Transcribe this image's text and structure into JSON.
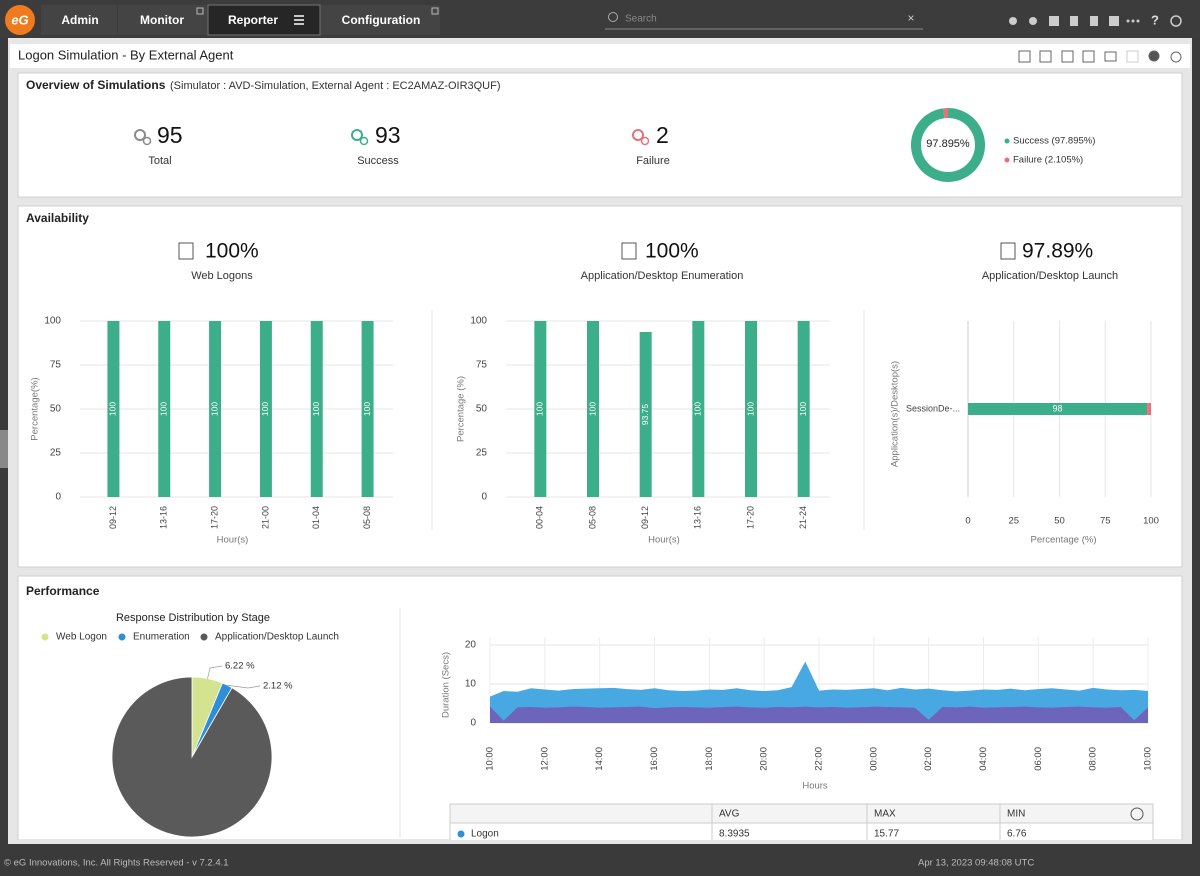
{
  "nav": {
    "tabs": [
      "Admin",
      "Monitor",
      "Reporter",
      "Configuration"
    ],
    "search_placeholder": "Search"
  },
  "page_title": "Logon Simulation - By External Agent",
  "overview": {
    "title": "Overview of Simulations",
    "subtitle": "(Simulator : AVD-Simulation, External Agent : EC2AMAZ-OIR3QUF)",
    "stats": [
      {
        "value": 95,
        "label": "Total",
        "color": "#8a8a8a"
      },
      {
        "value": 93,
        "label": "Success",
        "color": "#3dae8a"
      },
      {
        "value": 2,
        "label": "Failure",
        "color": "#e8707a"
      }
    ],
    "donut": {
      "type": "pie",
      "center_label": "97.895%",
      "categories": [
        "Success (97.895%)",
        "Failure (2.105%)"
      ],
      "values": [
        97.895,
        2.105
      ],
      "colors": [
        "#3dae8a",
        "#e8707a"
      ]
    }
  },
  "availability": {
    "title": "Availability",
    "kpis": [
      {
        "value": "100%",
        "label": "Web Logons"
      },
      {
        "value": "100%",
        "label": "Application/Desktop Enumeration"
      },
      {
        "value": "97.89%",
        "label": "Application/Desktop Launch"
      }
    ],
    "charts": [
      {
        "type": "bar",
        "categories": [
          "09-12",
          "13-16",
          "17-20",
          "21-00",
          "01-04",
          "05-08"
        ],
        "values": [
          100,
          100,
          100,
          100,
          100,
          100
        ],
        "color": "#3dae8a",
        "ylim": [
          0,
          100
        ],
        "yticks": [
          0,
          25,
          50,
          75,
          100
        ],
        "ylabel": "Percentage(%)",
        "xlabel": "Hour(s)",
        "grid": true
      },
      {
        "type": "bar",
        "categories": [
          "00-04",
          "05-08",
          "09-12",
          "13-16",
          "17-20",
          "21-24"
        ],
        "values": [
          100,
          100,
          93.75,
          100,
          100,
          100
        ],
        "color": "#3dae8a",
        "ylim": [
          0,
          100
        ],
        "yticks": [
          0,
          25,
          50,
          75,
          100
        ],
        "ylabel": "Percentage (%)",
        "xlabel": "Hour(s)",
        "grid": true
      },
      {
        "type": "hbar",
        "categories": [
          "SessionDe-..."
        ],
        "series": [
          {
            "color": "#3dae8a",
            "values": [
              97.89
            ],
            "value_labels": [
              "98"
            ]
          },
          {
            "color": "#e8707a",
            "values": [
              2.11
            ]
          }
        ],
        "xlim": [
          0,
          100
        ],
        "xticks": [
          0,
          25,
          50,
          75,
          100
        ],
        "xlabel": "Percentage (%)",
        "ylabel": "Application(s)/Desktop(s)",
        "grid": true
      }
    ]
  },
  "performance": {
    "title": "Performance",
    "pie": {
      "type": "pie",
      "title": "Response Distribution by Stage",
      "categories": [
        "Web Logon",
        "Enumeration",
        "Application/Desktop Launch"
      ],
      "values": [
        6.22,
        2.12,
        91.66
      ],
      "value_labels": [
        "6.22 %",
        "2.12 %",
        null
      ],
      "colors": [
        "#d4e38f",
        "#2e8fd8",
        "#5a5a5a"
      ]
    },
    "area": {
      "type": "area",
      "categories": [
        "10:00",
        null,
        null,
        null,
        "12:00",
        null,
        null,
        null,
        "14:00",
        null,
        null,
        null,
        "16:00",
        null,
        null,
        null,
        "18:00",
        null,
        null,
        null,
        "20:00",
        null,
        null,
        null,
        "22:00",
        null,
        null,
        null,
        "00:00",
        null,
        null,
        null,
        "02:00",
        null,
        null,
        null,
        "04:00",
        null,
        null,
        null,
        "06:00",
        null,
        null,
        null,
        "08:00",
        null,
        null,
        null,
        "10:00"
      ],
      "series": [
        {
          "color": "#3ea3e0",
          "values": [
            6.76,
            8.2,
            8.0,
            8.9,
            8.6,
            8.3,
            8.7,
            8.8,
            8.9,
            9.0,
            8.7,
            8.5,
            8.9,
            8.4,
            8.2,
            8.3,
            8.6,
            8.5,
            8.9,
            8.4,
            8.2,
            8.4,
            9.2,
            15.77,
            8.3,
            8.6,
            8.5,
            8.7,
            8.9,
            8.4,
            9.0,
            8.6,
            8.8,
            8.4,
            8.1,
            8.3,
            8.6,
            8.5,
            8.8,
            8.4,
            8.7,
            8.9,
            8.6,
            8.3,
            9.0,
            8.6,
            8.4,
            8.5,
            8.2
          ]
        },
        {
          "color": "#7060b8",
          "values": [
            4.2,
            0.6,
            4.0,
            4.1,
            3.9,
            4.0,
            4.2,
            4.1,
            3.9,
            4.0,
            4.1,
            4.2,
            3.8,
            4.0,
            4.1,
            4.0,
            3.9,
            4.1,
            4.2,
            4.0,
            3.9,
            4.1,
            4.0,
            4.2,
            4.0,
            4.1,
            3.9,
            4.0,
            4.2,
            4.1,
            4.0,
            3.9,
            0.8,
            4.1,
            4.0,
            4.2,
            3.9,
            4.0,
            4.1,
            4.2,
            4.0,
            3.9,
            4.1,
            4.2,
            4.0,
            3.9,
            4.1,
            0.7,
            4.0
          ]
        }
      ],
      "ylim": [
        0,
        20
      ],
      "yticks": [
        0,
        10,
        20
      ],
      "ylabel": "Duration (Secs)",
      "xlabel": "Hours",
      "grid": true
    },
    "table": {
      "headers": [
        "AVG",
        "MAX",
        "MIN"
      ],
      "rows": [
        {
          "name": "Logon",
          "color": "#2e8fd8",
          "cells": [
            "8.3935",
            "15.77",
            "6.76"
          ]
        }
      ]
    }
  },
  "footer": {
    "copyright": "© eG Innovations, Inc. All Rights Reserved - v 7.2.4.1",
    "timestamp": "Apr 13, 2023 09:48:08 UTC"
  }
}
